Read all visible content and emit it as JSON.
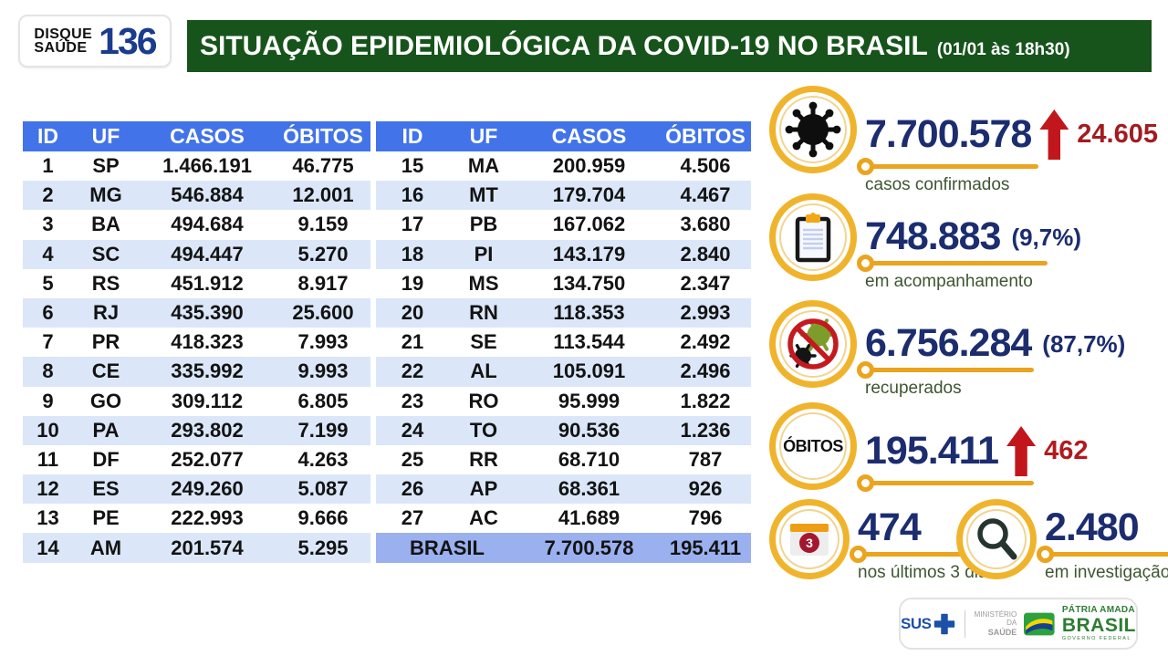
{
  "header": {
    "logo_line1": "DISQUE",
    "logo_line2": "SAÚDE",
    "logo_number": "136",
    "title": "SITUAÇÃO EPIDEMIOLÓGICA DA COVID-19 NO BRASIL",
    "timestamp": "(01/01 às 18h30)"
  },
  "table": {
    "headers": [
      "ID",
      "UF",
      "CASOS",
      "ÓBITOS"
    ],
    "left_rows": [
      [
        "1",
        "SP",
        "1.466.191",
        "46.775"
      ],
      [
        "2",
        "MG",
        "546.884",
        "12.001"
      ],
      [
        "3",
        "BA",
        "494.684",
        "9.159"
      ],
      [
        "4",
        "SC",
        "494.447",
        "5.270"
      ],
      [
        "5",
        "RS",
        "451.912",
        "8.917"
      ],
      [
        "6",
        "RJ",
        "435.390",
        "25.600"
      ],
      [
        "7",
        "PR",
        "418.323",
        "7.993"
      ],
      [
        "8",
        "CE",
        "335.992",
        "9.993"
      ],
      [
        "9",
        "GO",
        "309.112",
        "6.805"
      ],
      [
        "10",
        "PA",
        "293.802",
        "7.199"
      ],
      [
        "11",
        "DF",
        "252.077",
        "4.263"
      ],
      [
        "12",
        "ES",
        "249.260",
        "5.087"
      ],
      [
        "13",
        "PE",
        "222.993",
        "9.666"
      ],
      [
        "14",
        "AM",
        "201.574",
        "5.295"
      ]
    ],
    "right_rows": [
      [
        "15",
        "MA",
        "200.959",
        "4.506"
      ],
      [
        "16",
        "MT",
        "179.704",
        "4.467"
      ],
      [
        "17",
        "PB",
        "167.062",
        "3.680"
      ],
      [
        "18",
        "PI",
        "143.179",
        "2.840"
      ],
      [
        "19",
        "MS",
        "134.750",
        "2.347"
      ],
      [
        "20",
        "RN",
        "118.353",
        "2.993"
      ],
      [
        "21",
        "SE",
        "113.544",
        "2.492"
      ],
      [
        "22",
        "AL",
        "105.091",
        "2.496"
      ],
      [
        "23",
        "RO",
        "95.999",
        "1.822"
      ],
      [
        "24",
        "TO",
        "90.536",
        "1.236"
      ],
      [
        "25",
        "RR",
        "68.710",
        "787"
      ],
      [
        "26",
        "AP",
        "68.361",
        "926"
      ],
      [
        "27",
        "AC",
        "41.689",
        "796"
      ]
    ],
    "total_label": "BRASIL",
    "total_casos": "7.700.578",
    "total_obitos": "195.411"
  },
  "stats": [
    {
      "icon": "virus-icon",
      "value": "7.700.578",
      "delta": "24.605",
      "label": "casos confirmados"
    },
    {
      "icon": "clipboard-icon",
      "value": "748.883",
      "percent": "(9,7%)",
      "label": "em acompanhamento"
    },
    {
      "icon": "no-virus-icon",
      "value": "6.756.284",
      "percent": "(87,7%)",
      "label": "recuperados"
    },
    {
      "icon": "obitos-badge",
      "badge_text": "ÓBITOS",
      "value": "195.411",
      "delta": "462",
      "label": ""
    },
    {
      "icon": "calendar-icon",
      "icon_day": "3",
      "value": "474",
      "label": "nos últimos 3 dias"
    },
    {
      "icon": "magnifier-icon",
      "value": "2.480",
      "label": "em investigação"
    }
  ],
  "footer": {
    "sus": "SUS",
    "ministry_line1": "MINISTÉRIO DA",
    "ministry_line2": "SAÚDE",
    "brand_line1": "PÁTRIA AMADA",
    "brand_line2": "BRASIL",
    "brand_line3": "GOVERNO FEDERAL"
  },
  "colors": {
    "header_green": "#17541b",
    "table_header_blue": "#4273e9",
    "row_alt_blue": "#dbe7f8",
    "total_row_blue": "#9bb0ee",
    "stat_navy": "#1c2d6f",
    "stat_red": "#b11a1e",
    "arrow_red": "#c1171c",
    "circle_gold": "#f0b42c",
    "line_gold": "#eaa41e",
    "label_green": "#3d5631",
    "logo_blue": "#1b3c8c",
    "brand_green": "#2e7d32"
  },
  "chart_data": {
    "type": "table",
    "title": "SITUAÇÃO EPIDEMIOLÓGICA DA COVID-19 NO BRASIL (01/01 às 18h30)",
    "columns": [
      "ID",
      "UF",
      "CASOS",
      "ÓBITOS"
    ],
    "rows": [
      [
        1,
        "SP",
        1466191,
        46775
      ],
      [
        2,
        "MG",
        546884,
        12001
      ],
      [
        3,
        "BA",
        494684,
        9159
      ],
      [
        4,
        "SC",
        494447,
        5270
      ],
      [
        5,
        "RS",
        451912,
        8917
      ],
      [
        6,
        "RJ",
        435390,
        25600
      ],
      [
        7,
        "PR",
        418323,
        7993
      ],
      [
        8,
        "CE",
        335992,
        9993
      ],
      [
        9,
        "GO",
        309112,
        6805
      ],
      [
        10,
        "PA",
        293802,
        7199
      ],
      [
        11,
        "DF",
        252077,
        4263
      ],
      [
        12,
        "ES",
        249260,
        5087
      ],
      [
        13,
        "PE",
        222993,
        9666
      ],
      [
        14,
        "AM",
        201574,
        5295
      ],
      [
        15,
        "MA",
        200959,
        4506
      ],
      [
        16,
        "MT",
        179704,
        4467
      ],
      [
        17,
        "PB",
        167062,
        3680
      ],
      [
        18,
        "PI",
        143179,
        2840
      ],
      [
        19,
        "MS",
        134750,
        2347
      ],
      [
        20,
        "RN",
        118353,
        2993
      ],
      [
        21,
        "SE",
        113544,
        2492
      ],
      [
        22,
        "AL",
        105091,
        2496
      ],
      [
        23,
        "RO",
        95999,
        1822
      ],
      [
        24,
        "TO",
        90536,
        1236
      ],
      [
        25,
        "RR",
        68710,
        787
      ],
      [
        26,
        "AP",
        68361,
        926
      ],
      [
        27,
        "AC",
        41689,
        796
      ]
    ],
    "total": {
      "label": "BRASIL",
      "casos": 7700578,
      "obitos": 195411
    },
    "summary": {
      "casos_confirmados": 7700578,
      "casos_novos": 24605,
      "em_acompanhamento": 748883,
      "em_acompanhamento_pct": "9,7%",
      "recuperados": 6756284,
      "recuperados_pct": "87,7%",
      "obitos": 195411,
      "obitos_novos": 462,
      "obitos_ultimos_3_dias": 474,
      "obitos_em_investigacao": 2480
    }
  }
}
